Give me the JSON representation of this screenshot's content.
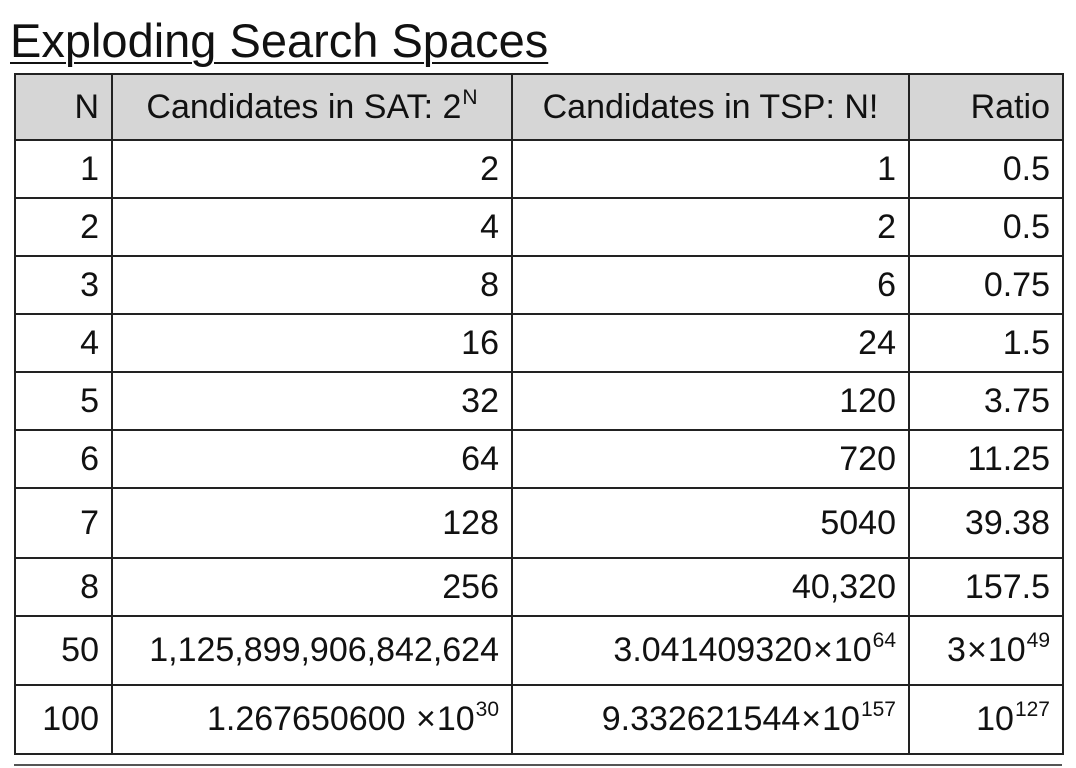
{
  "title": "Exploding Search Spaces",
  "table": {
    "headers": {
      "n": "N",
      "sat_text": "Candidates in SAT: 2",
      "sat_sup": "N",
      "tsp": "Candidates in TSP: N!",
      "ratio": "Ratio"
    },
    "rows": [
      {
        "n": "1",
        "sat": "2",
        "tsp": "1",
        "ratio": "0.5"
      },
      {
        "n": "2",
        "sat": "4",
        "tsp": "2",
        "ratio": "0.5"
      },
      {
        "n": "3",
        "sat": "8",
        "tsp": "6",
        "ratio": "0.75"
      },
      {
        "n": "4",
        "sat": "16",
        "tsp": "24",
        "ratio": "1.5"
      },
      {
        "n": "5",
        "sat": "32",
        "tsp": "120",
        "ratio": "3.75"
      },
      {
        "n": "6",
        "sat": "64",
        "tsp": "720",
        "ratio": "11.25"
      },
      {
        "n": "7",
        "sat": "128",
        "tsp": "5040",
        "ratio": "39.38"
      },
      {
        "n": "8",
        "sat": "256",
        "tsp": "40,320",
        "ratio": "157.5"
      },
      {
        "n": "50",
        "sat": "1,125,899,906,842,624",
        "tsp_mant": "3.041409320",
        "tsp_times": "×",
        "tsp_base": "10",
        "tsp_exp": "64",
        "ratio_mant": "3",
        "ratio_times": "×",
        "ratio_base": "10",
        "ratio_exp": "49"
      },
      {
        "n": "100",
        "sat_mant": "1.267650600 ",
        "sat_times": "×",
        "sat_base": "10",
        "sat_exp": "30",
        "tsp_mant": "9.332621544",
        "tsp_times": "×",
        "tsp_base": "10",
        "tsp_exp": "157",
        "ratio_base": "10",
        "ratio_exp": "127"
      }
    ]
  }
}
